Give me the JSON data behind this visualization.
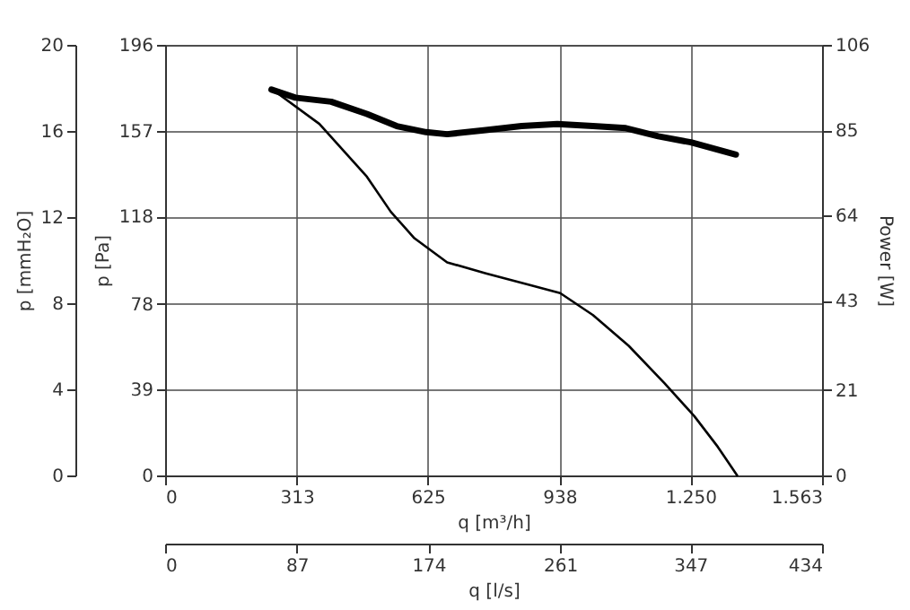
{
  "chart_data": {
    "type": "line",
    "xlabel": "q [m³/h]",
    "ylabel": "p [Pa]",
    "y2label": "Power [W]",
    "y3label": "p [mmH₂O]",
    "x2label": "q [l/s]",
    "xlim": [
      0,
      1563
    ],
    "xticks": [
      0,
      313,
      625,
      938,
      {
        "value": 1250,
        "label": "1.250"
      },
      {
        "value": 1563,
        "label": "1.563"
      }
    ],
    "ylim": [
      0,
      196
    ],
    "yticks": [
      0,
      39,
      78,
      118,
      157,
      196
    ],
    "y2lim": [
      0,
      106
    ],
    "y2ticks": [
      0,
      21,
      43,
      64,
      85,
      106
    ],
    "y3lim": [
      0,
      20
    ],
    "y3ticks": [
      0,
      4,
      8,
      12,
      16,
      20
    ],
    "x2lim": [
      0,
      434
    ],
    "x2ticks": [
      0,
      87,
      174,
      261,
      347,
      434
    ],
    "grid": true,
    "line_style": "solid",
    "marker": "none",
    "series": [
      {
        "color": "#000000",
        "x": [
          253,
          367,
          480,
          537,
          593,
          671,
          763,
          862,
          940,
          1018,
          1103,
          1188,
          1259,
          1315,
          1361
        ],
        "values": [
          176,
          160,
          136,
          120,
          108,
          97,
          92,
          87,
          83,
          73,
          59,
          42,
          27,
          13,
          0
        ]
      },
      {
        "color": "#000000",
        "axis": "y2",
        "x": [
          253,
          310,
          395,
          480,
          551,
          621,
          671,
          763,
          848,
          933,
          1018,
          1096,
          1173,
          1251,
          1358
        ],
        "values": [
          95,
          93,
          92,
          89,
          86,
          84.5,
          84,
          85,
          86,
          86.5,
          86,
          85.5,
          83.5,
          82,
          79
        ]
      }
    ]
  }
}
